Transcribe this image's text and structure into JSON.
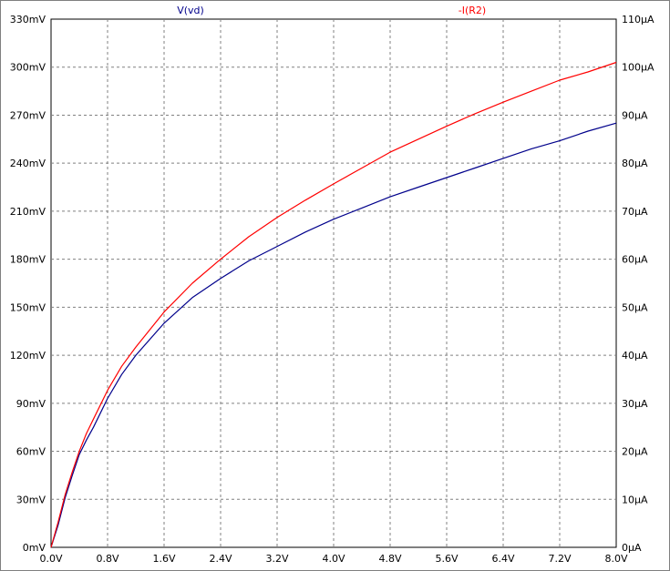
{
  "chart_data": {
    "type": "line",
    "grid": true,
    "x": {
      "label": "",
      "range": [
        0,
        8
      ],
      "ticks": [
        0,
        0.8,
        1.6,
        2.4,
        3.2,
        4.0,
        4.8,
        5.6,
        6.4,
        7.2,
        8.0
      ],
      "tick_labels": [
        "0.0V",
        "0.8V",
        "1.6V",
        "2.4V",
        "3.2V",
        "4.0V",
        "4.8V",
        "5.6V",
        "6.4V",
        "7.2V",
        "8.0V"
      ]
    },
    "y_left": {
      "label": "",
      "range": [
        0,
        330
      ],
      "tick_labels": [
        "0mV",
        "30mV",
        "60mV",
        "90mV",
        "120mV",
        "150mV",
        "180mV",
        "210mV",
        "240mV",
        "270mV",
        "300mV",
        "330mV"
      ]
    },
    "y_right": {
      "label": "",
      "range": [
        0,
        110
      ],
      "tick_labels": [
        "0µA",
        "10µA",
        "20µA",
        "30µA",
        "40µA",
        "50µA",
        "60µA",
        "70µA",
        "80µA",
        "90µA",
        "100µA",
        "110µA"
      ]
    },
    "series": [
      {
        "name": "V(vd)",
        "color": "#00008b",
        "axis": "left",
        "x": [
          0,
          0.1,
          0.2,
          0.3,
          0.4,
          0.5,
          0.6,
          0.8,
          1.0,
          1.2,
          1.6,
          2.0,
          2.4,
          2.8,
          3.2,
          3.6,
          4.0,
          4.4,
          4.8,
          5.2,
          5.6,
          6.0,
          6.4,
          6.8,
          7.2,
          7.6,
          8.0
        ],
        "y": [
          0,
          14,
          31,
          45,
          58,
          67,
          75,
          93,
          108,
          120,
          140,
          156,
          168,
          179,
          188,
          197,
          205,
          212,
          219,
          225,
          231,
          237,
          243,
          249,
          254,
          260,
          265
        ]
      },
      {
        "name": "-I(R2)",
        "color": "#ff0000",
        "axis": "right",
        "x": [
          0,
          0.1,
          0.2,
          0.3,
          0.4,
          0.5,
          0.6,
          0.8,
          1.0,
          1.2,
          1.6,
          2.0,
          2.4,
          2.8,
          3.2,
          3.6,
          4.0,
          4.4,
          4.8,
          5.2,
          5.6,
          6.0,
          6.4,
          6.8,
          7.2,
          7.6,
          8.0
        ],
        "y": [
          0,
          5.3,
          11,
          15.7,
          20,
          23.7,
          26.7,
          32.7,
          37.7,
          41.7,
          49,
          55,
          60,
          64.7,
          68.7,
          72.3,
          75.7,
          79,
          82.3,
          85,
          87.7,
          90.3,
          92.7,
          95,
          97.3,
          99,
          101
        ]
      }
    ]
  }
}
